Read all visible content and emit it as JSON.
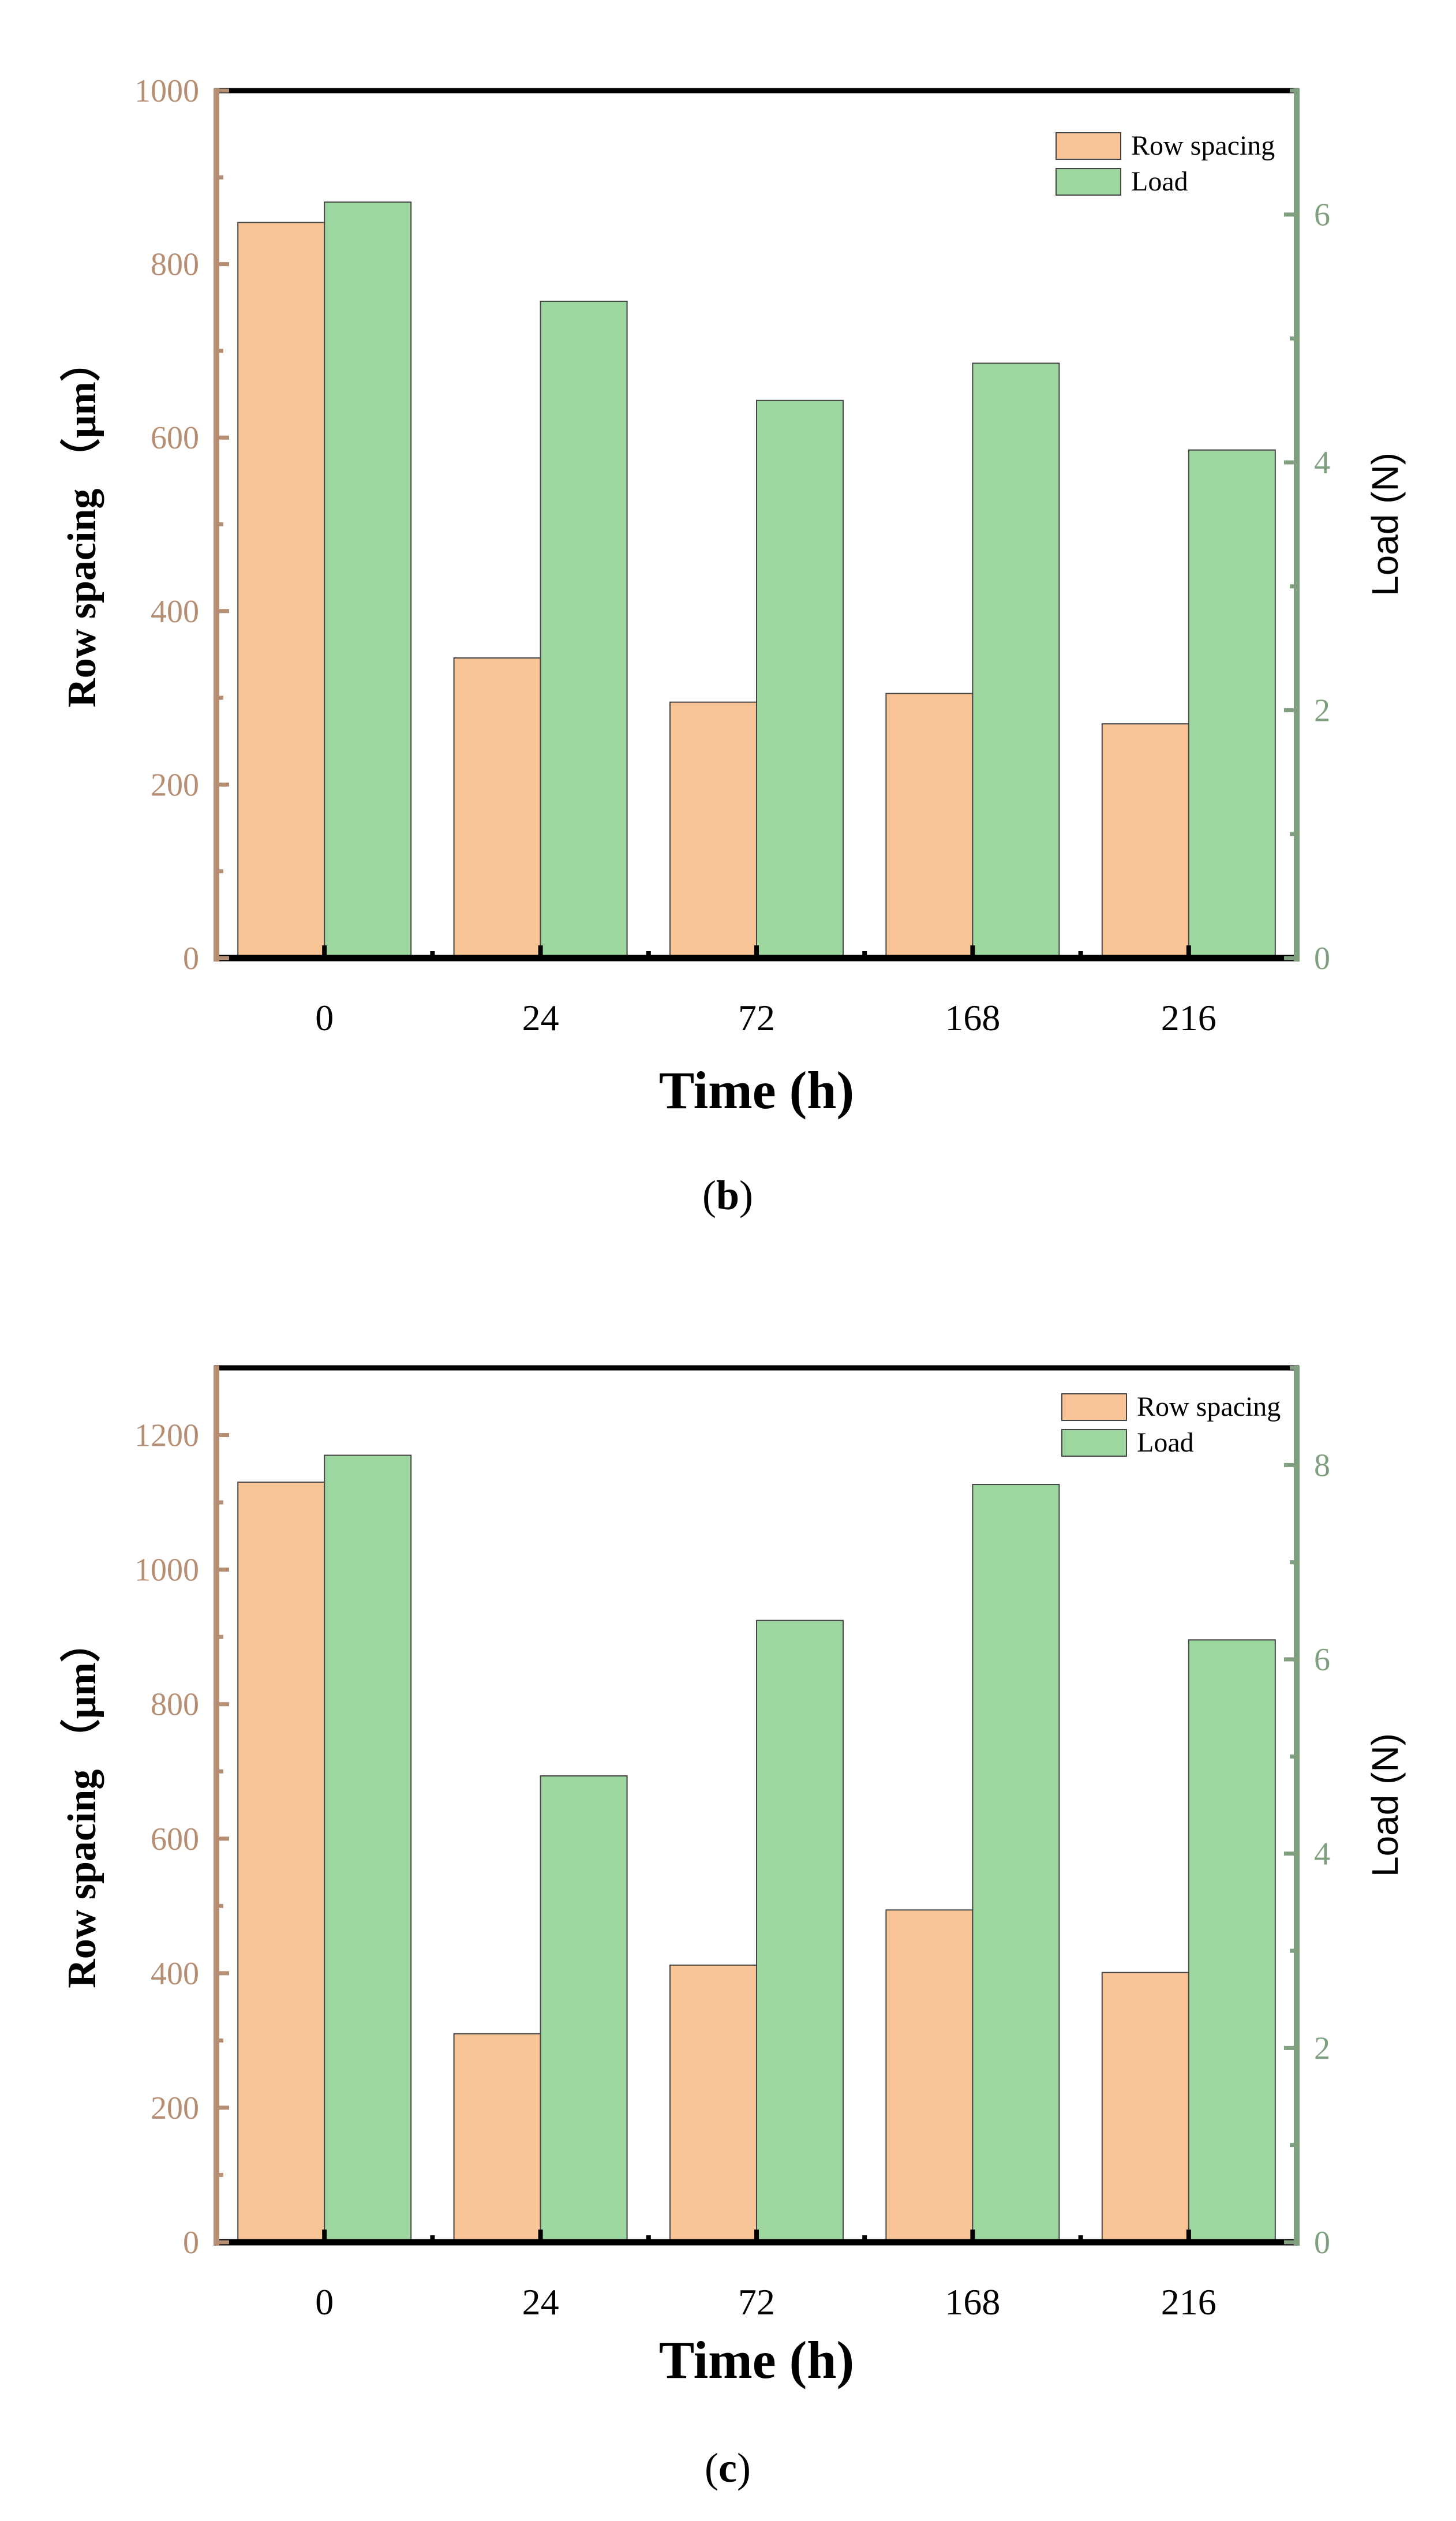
{
  "colors": {
    "row_spacing": "#f9c597",
    "load": "#9dd69e",
    "left_axis": "#b58e73",
    "right_axis": "#7f9f7f",
    "bar_edge": "#444444"
  },
  "chart_data": [
    {
      "type": "bar",
      "panel_label": "b",
      "categories": [
        "0",
        "24",
        "72",
        "168",
        "216"
      ],
      "series": [
        {
          "name": "Row spacing",
          "axis": "left",
          "values": [
            848,
            346,
            295,
            305,
            270
          ]
        },
        {
          "name": "Load",
          "axis": "right",
          "values": [
            6.1,
            5.3,
            4.5,
            4.8,
            4.1
          ]
        }
      ],
      "xlabel": "Time (h)",
      "ylabel": "Row spacing （μm）",
      "ylabel_right": "Load (N)",
      "ylim": [
        0,
        1000
      ],
      "ylim_right": [
        0,
        7
      ],
      "yticks": [
        0,
        200,
        400,
        600,
        800,
        1000
      ],
      "yticks_right": [
        0,
        2,
        4,
        6
      ],
      "legend": "top-right"
    },
    {
      "type": "bar",
      "panel_label": "c",
      "categories": [
        "0",
        "24",
        "72",
        "168",
        "216"
      ],
      "series": [
        {
          "name": "Row spacing",
          "axis": "left",
          "values": [
            1130,
            310,
            412,
            494,
            401
          ]
        },
        {
          "name": "Load",
          "axis": "right",
          "values": [
            8.1,
            4.8,
            6.4,
            7.8,
            6.2
          ]
        }
      ],
      "xlabel": "Time (h)",
      "ylabel": "Row spacing （μm）",
      "ylabel_right": "Load (N)",
      "ylim": [
        0,
        1300
      ],
      "ylim_right": [
        0,
        9
      ],
      "yticks": [
        0,
        200,
        400,
        600,
        800,
        1000,
        1200
      ],
      "yticks_right": [
        0,
        2,
        4,
        6,
        8
      ],
      "legend": "top-right"
    }
  ]
}
